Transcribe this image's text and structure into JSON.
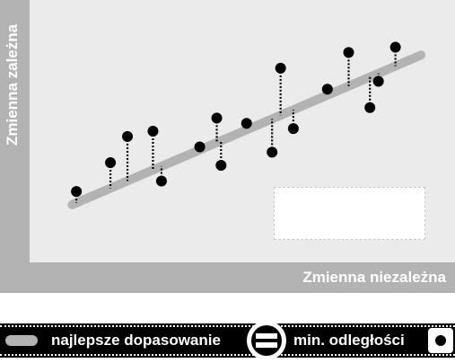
{
  "axes": {
    "y_label": "Zmienna zależna",
    "x_label": "Zmienna niezależna"
  },
  "legend": {
    "line_label": "najlepsze dopasowanie",
    "equals_icon": "equals-icon",
    "distance_label": "min. odległości",
    "dot_icon": "dot-icon"
  },
  "colors": {
    "frame": "#b3b3b3",
    "plot_background": "#ebebeb",
    "regression_line": "#b3b3b3",
    "points": "#000000"
  },
  "chart_data": {
    "type": "scatter",
    "x_range": [
      0,
      100
    ],
    "y_range": [
      0,
      100
    ],
    "regression_line": {
      "x": [
        10,
        92
      ],
      "y": [
        22,
        79
      ]
    },
    "points": [
      {
        "x": 11,
        "y": 27
      },
      {
        "x": 19,
        "y": 38
      },
      {
        "x": 23,
        "y": 48
      },
      {
        "x": 29,
        "y": 50
      },
      {
        "x": 31,
        "y": 31
      },
      {
        "x": 40,
        "y": 44
      },
      {
        "x": 44,
        "y": 55
      },
      {
        "x": 45,
        "y": 37
      },
      {
        "x": 51,
        "y": 53
      },
      {
        "x": 57,
        "y": 42
      },
      {
        "x": 59,
        "y": 74
      },
      {
        "x": 62,
        "y": 51
      },
      {
        "x": 70,
        "y": 66
      },
      {
        "x": 75,
        "y": 80
      },
      {
        "x": 80,
        "y": 59
      },
      {
        "x": 82,
        "y": 69
      },
      {
        "x": 86,
        "y": 82
      }
    ]
  }
}
